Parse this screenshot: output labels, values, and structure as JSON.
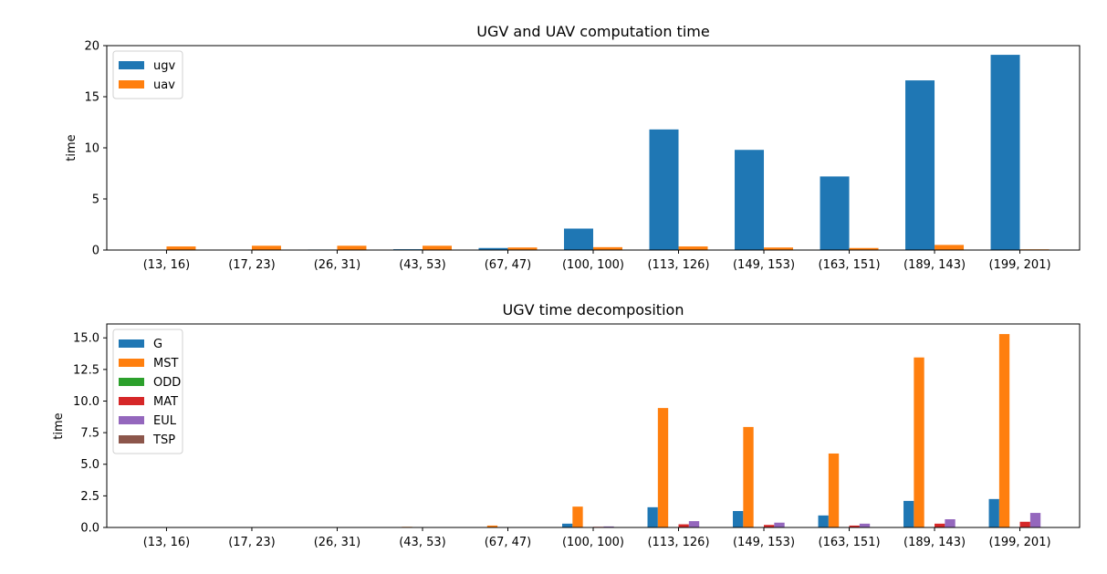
{
  "chart_data": [
    {
      "type": "bar",
      "title": "UGV and UAV computation time",
      "xlabel": "",
      "ylabel": "time",
      "ylim": [
        0,
        20
      ],
      "yticks": [
        0,
        5,
        10,
        15,
        20
      ],
      "legend_position": "top-left",
      "grid": false,
      "categories": [
        "(13, 16)",
        "(17, 23)",
        "(26, 31)",
        "(43, 53)",
        "(67, 47)",
        "(100, 100)",
        "(113, 126)",
        "(149, 153)",
        "(163, 151)",
        "(189, 143)",
        "(199, 201)"
      ],
      "series": [
        {
          "name": "ugv",
          "color": "#1f77b4",
          "values": [
            0.01,
            0.02,
            0.05,
            0.08,
            0.2,
            2.1,
            11.8,
            9.8,
            7.2,
            16.6,
            19.1
          ]
        },
        {
          "name": "uav",
          "color": "#ff7f0e",
          "values": [
            0.35,
            0.42,
            0.42,
            0.42,
            0.25,
            0.28,
            0.35,
            0.25,
            0.2,
            0.5,
            0.07
          ]
        }
      ]
    },
    {
      "type": "bar",
      "title": "UGV time decomposition",
      "xlabel": "",
      "ylabel": "time",
      "ylim": [
        0,
        16.1
      ],
      "yticks": [
        "0.0",
        "2.5",
        "5.0",
        "7.5",
        "10.0",
        "12.5",
        "15.0"
      ],
      "legend_position": "top-left",
      "grid": false,
      "categories": [
        "(13, 16)",
        "(17, 23)",
        "(26, 31)",
        "(43, 53)",
        "(67, 47)",
        "(100, 100)",
        "(113, 126)",
        "(149, 153)",
        "(163, 151)",
        "(189, 143)",
        "(199, 201)"
      ],
      "series": [
        {
          "name": "G",
          "color": "#1f77b4",
          "values": [
            0.0,
            0.0,
            0.0,
            0.01,
            0.02,
            0.3,
            1.6,
            1.3,
            0.95,
            2.1,
            2.25
          ]
        },
        {
          "name": "MST",
          "color": "#ff7f0e",
          "values": [
            0.0,
            0.01,
            0.02,
            0.05,
            0.15,
            1.65,
            9.45,
            7.95,
            5.85,
            13.45,
            15.3
          ]
        },
        {
          "name": "ODD",
          "color": "#2ca02c",
          "values": [
            0.0,
            0.0,
            0.0,
            0.0,
            0.0,
            0.0,
            0.01,
            0.01,
            0.01,
            0.01,
            0.01
          ]
        },
        {
          "name": "MAT",
          "color": "#d62728",
          "values": [
            0.0,
            0.0,
            0.0,
            0.0,
            0.0,
            0.05,
            0.25,
            0.2,
            0.15,
            0.3,
            0.45
          ]
        },
        {
          "name": "EUL",
          "color": "#9467bd",
          "values": [
            0.0,
            0.0,
            0.0,
            0.0,
            0.01,
            0.08,
            0.5,
            0.38,
            0.3,
            0.65,
            1.15
          ]
        },
        {
          "name": "TSP",
          "color": "#8c564b",
          "values": [
            0.0,
            0.0,
            0.0,
            0.0,
            0.0,
            0.01,
            0.03,
            0.02,
            0.02,
            0.03,
            0.03
          ]
        }
      ]
    }
  ]
}
